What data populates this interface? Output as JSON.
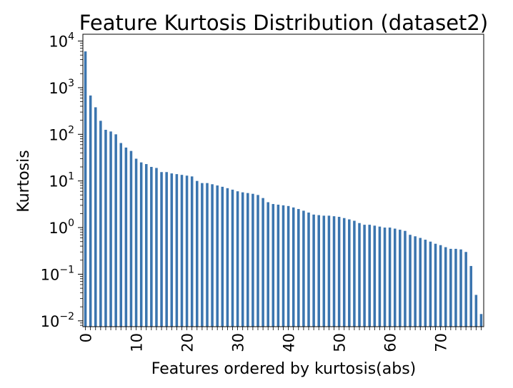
{
  "chart_data": {
    "type": "bar",
    "title": "Feature Kurtosis Distribution (dataset2)",
    "xlabel": "Features ordered by kurtosis(abs)",
    "ylabel": "Kurtosis",
    "yscale": "log",
    "ylim": [
      0.0075,
      14000
    ],
    "xlim": [
      -0.5,
      78.5
    ],
    "grid": false,
    "legend": "none",
    "bar_color": "#3b75af",
    "x_ticks": [
      0,
      10,
      20,
      30,
      40,
      50,
      60,
      70
    ],
    "x_tick_labels": [
      "0",
      "10",
      "20",
      "30",
      "40",
      "50",
      "60",
      "70"
    ],
    "y_ticks": [
      {
        "value": 0.01,
        "base": "10",
        "exp": "−2"
      },
      {
        "value": 0.1,
        "base": "10",
        "exp": "−1"
      },
      {
        "value": 1,
        "base": "10",
        "exp": "0"
      },
      {
        "value": 10,
        "base": "10",
        "exp": "1"
      },
      {
        "value": 100,
        "base": "10",
        "exp": "2"
      },
      {
        "value": 1000,
        "base": "10",
        "exp": "3"
      },
      {
        "value": 10000,
        "base": "10",
        "exp": "4"
      }
    ],
    "values": [
      6000,
      680,
      380,
      195,
      125,
      115,
      100,
      65,
      52,
      44,
      30,
      25,
      23,
      20,
      19,
      15.5,
      15.5,
      14.5,
      14,
      13.5,
      13,
      12.5,
      10,
      9,
      9,
      8.5,
      8,
      7.5,
      7,
      6.5,
      6,
      5.7,
      5.5,
      5.3,
      5,
      4.3,
      3.5,
      3.2,
      3.1,
      3.0,
      2.9,
      2.7,
      2.5,
      2.3,
      2.1,
      1.9,
      1.85,
      1.8,
      1.8,
      1.75,
      1.7,
      1.6,
      1.5,
      1.4,
      1.25,
      1.15,
      1.15,
      1.1,
      1.05,
      1.0,
      1.0,
      0.95,
      0.9,
      0.85,
      0.7,
      0.65,
      0.6,
      0.55,
      0.5,
      0.45,
      0.42,
      0.38,
      0.35,
      0.35,
      0.34,
      0.3,
      0.15,
      0.036,
      0.014
    ]
  }
}
